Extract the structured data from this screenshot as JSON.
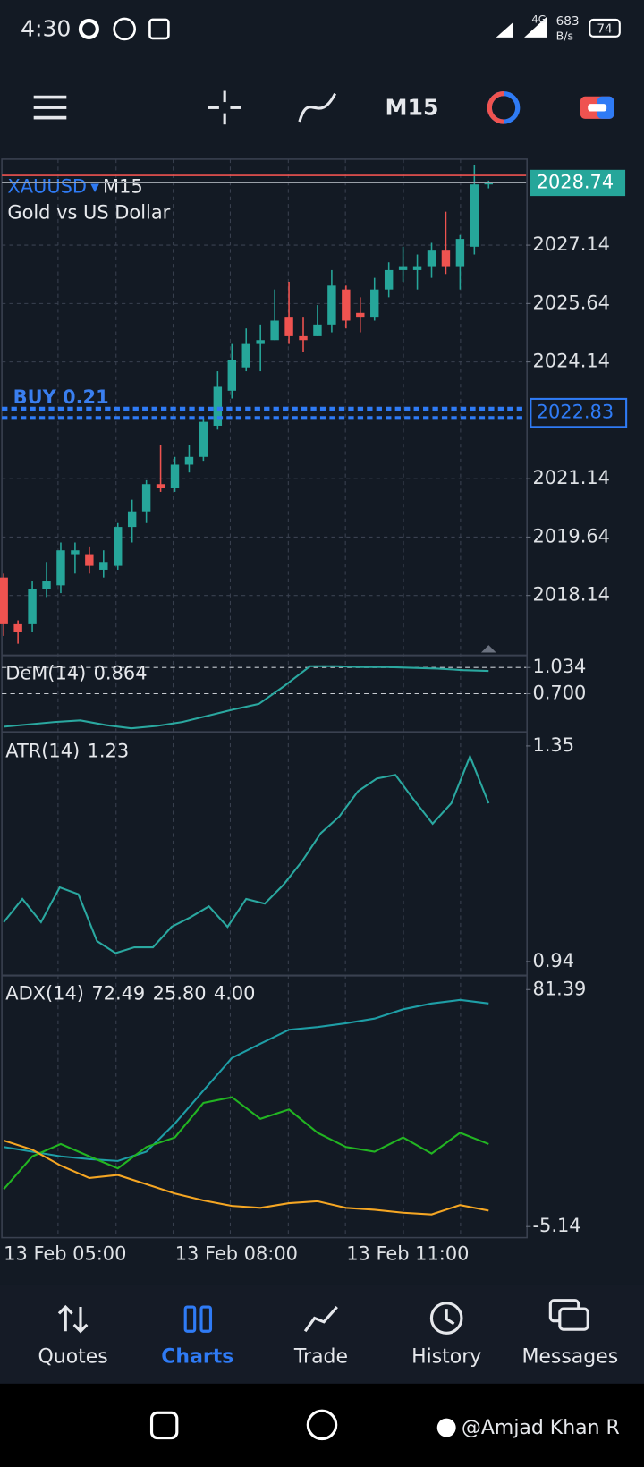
{
  "status_bar": {
    "time": "4:30",
    "network": "4G",
    "speed": "683",
    "speed_unit": "B/s",
    "battery": "74"
  },
  "toolbar": {
    "timeframe": "M15"
  },
  "chart_data": [
    {
      "type": "candlestick",
      "title": "XAUUSD",
      "timeframe": "M15",
      "subtitle": "Gold vs US Dollar",
      "ylim": [
        2016.65,
        2029.35
      ],
      "yticks": [
        2027.14,
        2025.64,
        2024.14,
        2021.14,
        2019.64,
        2018.14
      ],
      "grid": true,
      "last_price": 2028.74,
      "position": {
        "label": "BUY 0.21",
        "price": 2022.83
      },
      "up_color": "#26a69a",
      "down_color": "#ef5350",
      "candles": {
        "open": [
          2018.6,
          2017.4,
          2017.4,
          2018.3,
          2018.4,
          2019.2,
          2019.2,
          2018.8,
          2018.9,
          2019.9,
          2020.3,
          2021.0,
          2020.9,
          2021.5,
          2021.7,
          2022.5,
          2023.4,
          2024.0,
          2024.6,
          2024.7,
          2025.3,
          2024.8,
          2024.8,
          2025.1,
          2026.0,
          2025.4,
          2025.3,
          2026.0,
          2026.5,
          2026.5,
          2026.6,
          2027.0,
          2026.6,
          2027.1,
          2028.7
        ],
        "high": [
          2018.7,
          2017.5,
          2018.5,
          2019.0,
          2019.5,
          2019.5,
          2019.4,
          2019.3,
          2020.0,
          2020.6,
          2021.1,
          2022.0,
          2021.7,
          2022.0,
          2022.7,
          2023.9,
          2024.6,
          2025.0,
          2025.1,
          2026.0,
          2026.2,
          2025.3,
          2025.6,
          2026.5,
          2026.1,
          2025.8,
          2026.3,
          2026.7,
          2027.1,
          2026.9,
          2027.2,
          2028.0,
          2027.4,
          2029.2,
          2028.8
        ],
        "low": [
          2017.1,
          2016.9,
          2017.2,
          2018.1,
          2018.2,
          2018.7,
          2018.7,
          2018.6,
          2018.8,
          2019.5,
          2020.0,
          2020.8,
          2020.8,
          2021.3,
          2021.6,
          2022.4,
          2023.2,
          2023.9,
          2023.9,
          2024.7,
          2024.6,
          2024.4,
          2024.8,
          2024.9,
          2025.0,
          2024.9,
          2025.2,
          2025.8,
          2026.2,
          2026.0,
          2026.3,
          2026.4,
          2026.0,
          2026.9,
          2028.6
        ],
        "close": [
          2017.4,
          2017.2,
          2018.3,
          2018.5,
          2019.3,
          2019.3,
          2018.9,
          2019.0,
          2019.9,
          2020.3,
          2021.0,
          2020.9,
          2021.5,
          2021.7,
          2022.6,
          2023.5,
          2024.2,
          2024.6,
          2024.7,
          2025.2,
          2024.8,
          2024.7,
          2025.1,
          2026.1,
          2025.2,
          2025.3,
          2026.0,
          2026.5,
          2026.6,
          2026.6,
          2027.0,
          2026.6,
          2027.3,
          2028.7,
          2028.74
        ]
      }
    },
    {
      "type": "line",
      "title": "DeM(14)",
      "current_values": [
        0.864
      ],
      "ylim": [
        0.235,
        1.165
      ],
      "yticks": [
        1.034,
        {
          "value": 0.7,
          "label": "0.700"
        }
      ],
      "grid": true,
      "series": [
        {
          "color": "#2aa8a0",
          "values": [
            0.28,
            0.31,
            0.34,
            0.36,
            0.3,
            0.26,
            0.29,
            0.34,
            0.42,
            0.5,
            0.57,
            0.8,
            1.05,
            1.05,
            1.04,
            1.04,
            1.03,
            1.02,
            1.0,
            0.99
          ]
        }
      ]
    },
    {
      "type": "line",
      "title": "ATR(14)",
      "current_values": [
        1.23
      ],
      "ylim": [
        0.917,
        1.371
      ],
      "yticks": [
        1.35,
        0.94
      ],
      "grid": false,
      "series": [
        {
          "color": "#2aa8a0",
          "values": [
            1.015,
            1.059,
            1.015,
            1.081,
            1.068,
            0.979,
            0.956,
            0.967,
            0.967,
            1.006,
            1.024,
            1.045,
            1.006,
            1.059,
            1.05,
            1.086,
            1.131,
            1.184,
            1.216,
            1.264,
            1.288,
            1.295,
            1.247,
            1.202,
            1.241,
            1.33,
            1.241
          ]
        }
      ]
    },
    {
      "type": "line",
      "title": "ADX(14)",
      "current_values": [
        72.49,
        {
          "value": 25.8,
          "label": "25.80"
        },
        {
          "value": 4,
          "label": "4.00"
        }
      ],
      "ylim": [
        -8.5,
        85.5
      ],
      "yticks": [
        81.39,
        -5.14
      ],
      "grid": false,
      "series": [
        {
          "color": "#1e9ea6",
          "values": [
            23.9,
            22.2,
            20.5,
            19.5,
            18.8,
            22.2,
            32.5,
            44.5,
            56.4,
            61.6,
            66.7,
            67.7,
            69.1,
            70.8,
            74.2,
            76.3,
            77.6,
            76.3
          ]
        },
        {
          "color": "#22b522",
          "values": [
            8.5,
            20.5,
            25.0,
            20.5,
            16.1,
            23.9,
            27.4,
            40.0,
            42.1,
            34.2,
            37.6,
            29.1,
            23.9,
            22.2,
            27.4,
            21.5,
            29.1,
            25.0
          ]
        },
        {
          "color": "#f5a623",
          "values": [
            26.3,
            22.9,
            17.1,
            12.6,
            13.7,
            10.3,
            6.9,
            4.4,
            2.4,
            1.7,
            3.4,
            4.1,
            1.7,
            1.0,
            -0.1,
            -0.7,
            2.7,
            0.7
          ]
        }
      ]
    }
  ],
  "time_axis": {
    "labels": [
      "13 Feb 05:00",
      "13 Feb 08:00",
      "13 Feb 11:00"
    ]
  },
  "navigation": {
    "items": [
      "Quotes",
      "Charts",
      "Trade",
      "History",
      "Messages"
    ],
    "active": "Charts"
  },
  "watermark": "@Amjad Khan R"
}
